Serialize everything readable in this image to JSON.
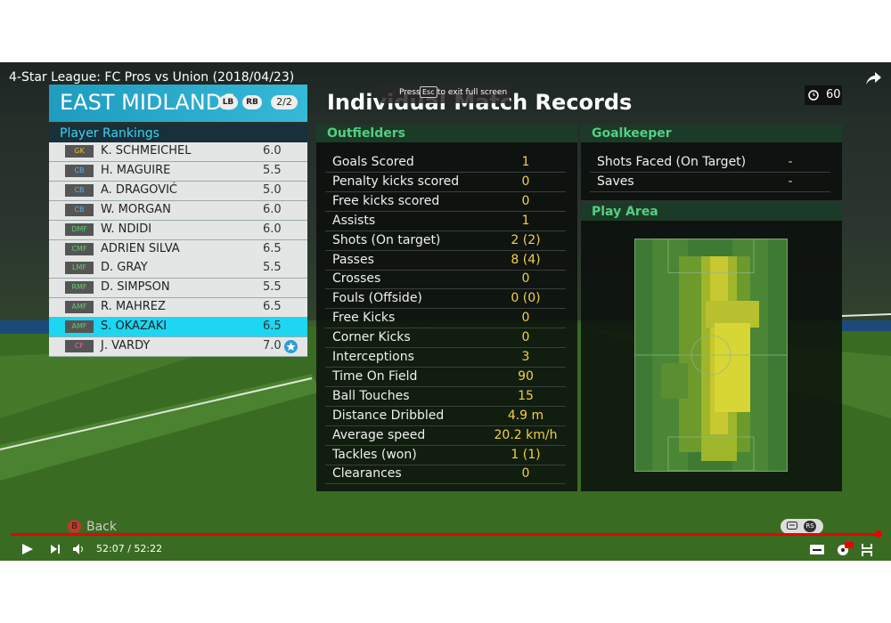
{
  "video": {
    "title": "4-Star League: FC Pros vs Union (2018/04/23)",
    "time": "52:07 / 52:22"
  },
  "fullscreen_hint": {
    "press": "Press",
    "key": "Esc",
    "text": "to exit full screen"
  },
  "game": {
    "team": {
      "name": "EAST MIDLANDS",
      "buttons": [
        "LB",
        "RB"
      ],
      "page": "2/2"
    },
    "rankings": {
      "title": "Player Rankings",
      "rows": [
        {
          "position": "GK",
          "color": "#e6c23a",
          "name": "K. SCHMEICHEL",
          "rating": "6.0"
        },
        {
          "position": "CB",
          "color": "#4fb3ff",
          "name": "H. MAGUIRE",
          "rating": "5.5"
        },
        {
          "position": "CB",
          "color": "#4fb3ff",
          "name": "A. DRAGOVIĆ",
          "rating": "5.0"
        },
        {
          "position": "CB",
          "color": "#4fb3ff",
          "name": "W. MORGAN",
          "rating": "6.0"
        },
        {
          "position": "DMF",
          "color": "#5fd06a",
          "name": "W. NDIDI",
          "rating": "6.0"
        },
        {
          "position": "CMF",
          "color": "#5fd06a",
          "name": "ADRIEN SILVA",
          "rating": "6.5"
        },
        {
          "position": "LMF",
          "color": "#5fd06a",
          "name": "D. GRAY",
          "rating": "5.5"
        },
        {
          "position": "RMF",
          "color": "#5fd06a",
          "name": "D. SIMPSON",
          "rating": "5.5"
        },
        {
          "position": "AMF",
          "color": "#5fd06a",
          "name": "R. MAHREZ",
          "rating": "6.5"
        },
        {
          "position": "AMF",
          "color": "#5fd06a",
          "name": "S. OKAZAKI",
          "rating": "6.5",
          "selected": true
        },
        {
          "position": "CF",
          "color": "#ff5fa0",
          "name": "J. VARDY",
          "rating": "7.0",
          "star": true
        }
      ]
    },
    "records": {
      "title": "Individual Match Records",
      "timer": "60",
      "outfielders": {
        "title": "Outfielders",
        "rows": [
          [
            "Goals Scored",
            "1"
          ],
          [
            "Penalty kicks scored",
            "0"
          ],
          [
            "Free kicks scored",
            "0"
          ],
          [
            "Assists",
            "1"
          ],
          [
            "Shots (On target)",
            "2 (2)"
          ],
          [
            "Passes",
            "8 (4)"
          ],
          [
            "Crosses",
            "0"
          ],
          [
            "Fouls (Offside)",
            "0 (0)"
          ],
          [
            "Free Kicks",
            "0"
          ],
          [
            "Corner Kicks",
            "0"
          ],
          [
            "Interceptions",
            "3"
          ],
          [
            "Time On Field",
            "90"
          ],
          [
            "Ball Touches",
            "15"
          ],
          [
            "Distance Dribbled",
            "4.9 m"
          ],
          [
            "Average speed",
            "20.2 km/h"
          ],
          [
            "Tackles (won)",
            "1 (1)"
          ],
          [
            "Clearances",
            "0"
          ]
        ]
      },
      "goalkeeper": {
        "title": "Goalkeeper",
        "rows": [
          [
            "Shots Faced (On Target)",
            "-"
          ],
          [
            "Saves",
            "-"
          ]
        ]
      },
      "play_area": {
        "title": "Play Area"
      }
    },
    "back": {
      "button": "B",
      "label": "Back"
    },
    "stick": "RS"
  }
}
